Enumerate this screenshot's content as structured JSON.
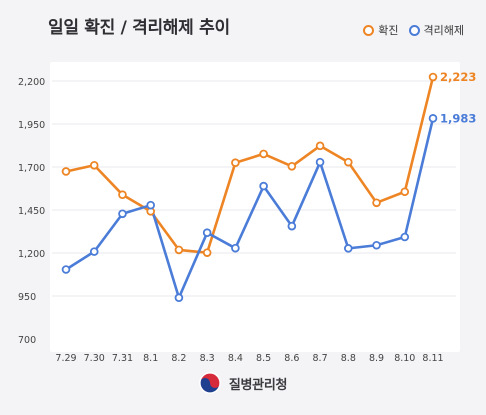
{
  "title": "일일 확진 / 격리해제 추이",
  "legend": [
    {
      "label": "확진",
      "color": "#ee8524"
    },
    {
      "label": "격리해제",
      "color": "#4a7cd8"
    }
  ],
  "footer": {
    "org_name": "질병관리청"
  },
  "chart_data": {
    "type": "line",
    "title": "일일 확진 / 격리해제 추이",
    "xlabel": "",
    "ylabel": "",
    "categories": [
      "7.29",
      "7.30",
      "7.31",
      "8.1",
      "8.2",
      "8.3",
      "8.4",
      "8.5",
      "8.6",
      "8.7",
      "8.8",
      "8.9",
      "8.10",
      "8.11"
    ],
    "series": [
      {
        "name": "확진",
        "color": "#ee8524",
        "values": [
          1674,
          1710,
          1539,
          1442,
          1218,
          1202,
          1725,
          1776,
          1704,
          1823,
          1728,
          1492,
          1556,
          2223
        ]
      },
      {
        "name": "격리해제",
        "color": "#4a7cd8",
        "values": [
          1104,
          1208,
          1428,
          1478,
          940,
          1318,
          1228,
          1589,
          1356,
          1728,
          1227,
          1245,
          1293,
          1983
        ]
      }
    ],
    "labels": [
      {
        "series": "확진",
        "text": "2,223"
      },
      {
        "series": "격리해제",
        "text": "1,983"
      }
    ],
    "yticks": [
      700,
      950,
      1200,
      1450,
      1700,
      1950,
      2200
    ],
    "ytick_labels": [
      "700",
      "950",
      "1,200",
      "1,450",
      "1,700",
      "1,950",
      "2,200"
    ],
    "ylim": [
      700,
      2250
    ],
    "grid": true
  }
}
